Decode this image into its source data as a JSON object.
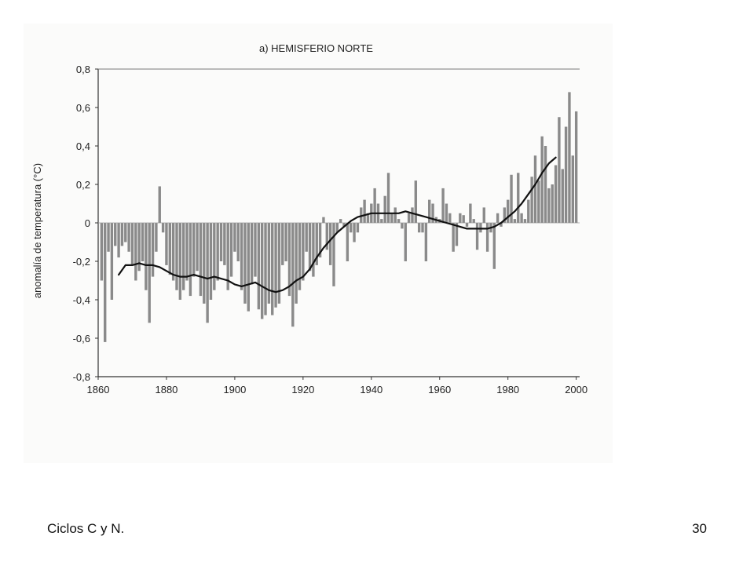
{
  "footer": {
    "left_text": "Ciclos C y N.",
    "page_number": "30"
  },
  "chart_data": {
    "type": "bar",
    "title": "a) HEMISFERIO NORTE",
    "xlabel": "",
    "ylabel": "anomalía de temperatura (°C)",
    "xlim": [
      1860,
      2001
    ],
    "ylim": [
      -0.8,
      0.8
    ],
    "xticks": [
      1860,
      1880,
      1900,
      1920,
      1940,
      1960,
      1980,
      2000
    ],
    "yticks": [
      0.8,
      0.6,
      0.4,
      0.2,
      0,
      -0.2,
      -0.4,
      -0.6,
      -0.8
    ],
    "ytick_labels": [
      "0,8",
      "0,6",
      "0,4",
      "0,2",
      "0",
      "-0,2",
      "-0,4",
      "-0,6",
      "-0,8"
    ],
    "grid": false,
    "colors": {
      "bars": "#8a8a8a",
      "smooth_line": "#111111",
      "axis": "#333333"
    },
    "series": [
      {
        "kind": "bars",
        "x": [
          1861,
          1862,
          1863,
          1864,
          1865,
          1866,
          1867,
          1868,
          1869,
          1870,
          1871,
          1872,
          1873,
          1874,
          1875,
          1876,
          1877,
          1878,
          1879,
          1880,
          1881,
          1882,
          1883,
          1884,
          1885,
          1886,
          1887,
          1888,
          1889,
          1890,
          1891,
          1892,
          1893,
          1894,
          1895,
          1896,
          1897,
          1898,
          1899,
          1900,
          1901,
          1902,
          1903,
          1904,
          1905,
          1906,
          1907,
          1908,
          1909,
          1910,
          1911,
          1912,
          1913,
          1914,
          1915,
          1916,
          1917,
          1918,
          1919,
          1920,
          1921,
          1922,
          1923,
          1924,
          1925,
          1926,
          1927,
          1928,
          1929,
          1930,
          1931,
          1932,
          1933,
          1934,
          1935,
          1936,
          1937,
          1938,
          1939,
          1940,
          1941,
          1942,
          1943,
          1944,
          1945,
          1946,
          1947,
          1948,
          1949,
          1950,
          1951,
          1952,
          1953,
          1954,
          1955,
          1956,
          1957,
          1958,
          1959,
          1960,
          1961,
          1962,
          1963,
          1964,
          1965,
          1966,
          1967,
          1968,
          1969,
          1970,
          1971,
          1972,
          1973,
          1974,
          1975,
          1976,
          1977,
          1978,
          1979,
          1980,
          1981,
          1982,
          1983,
          1984,
          1985,
          1986,
          1987,
          1988,
          1989,
          1990,
          1991,
          1992,
          1993,
          1994,
          1995,
          1996,
          1997,
          1998,
          1999,
          2000
        ],
        "values": [
          -0.3,
          -0.62,
          -0.15,
          -0.4,
          -0.12,
          -0.18,
          -0.12,
          -0.1,
          -0.15,
          -0.22,
          -0.3,
          -0.25,
          -0.2,
          -0.35,
          -0.52,
          -0.28,
          -0.15,
          0.19,
          -0.05,
          -0.22,
          -0.27,
          -0.3,
          -0.35,
          -0.4,
          -0.35,
          -0.3,
          -0.38,
          -0.28,
          -0.25,
          -0.38,
          -0.42,
          -0.52,
          -0.4,
          -0.35,
          -0.3,
          -0.2,
          -0.22,
          -0.35,
          -0.28,
          -0.15,
          -0.2,
          -0.35,
          -0.42,
          -0.46,
          -0.32,
          -0.28,
          -0.45,
          -0.5,
          -0.48,
          -0.42,
          -0.48,
          -0.44,
          -0.42,
          -0.22,
          -0.2,
          -0.38,
          -0.54,
          -0.42,
          -0.35,
          -0.3,
          -0.15,
          -0.25,
          -0.28,
          -0.22,
          -0.18,
          0.03,
          -0.14,
          -0.22,
          -0.33,
          -0.05,
          0.02,
          -0.02,
          -0.2,
          -0.05,
          -0.1,
          -0.05,
          0.08,
          0.12,
          0.05,
          0.1,
          0.18,
          0.1,
          0.02,
          0.14,
          0.26,
          0.05,
          0.08,
          0.02,
          -0.03,
          -0.2,
          0.05,
          0.08,
          0.22,
          -0.05,
          -0.05,
          -0.2,
          0.12,
          0.1,
          0.03,
          0.02,
          0.18,
          0.1,
          0.05,
          -0.15,
          -0.12,
          0.05,
          0.04,
          -0.02,
          0.1,
          0.02,
          -0.14,
          -0.05,
          0.08,
          -0.15,
          -0.05,
          -0.24,
          0.05,
          -0.02,
          0.08,
          0.12,
          0.25,
          0.02,
          0.26,
          0.05,
          0.02,
          0.12,
          0.24,
          0.35,
          0.22,
          0.45,
          0.4,
          0.18,
          0.2,
          0.3,
          0.55,
          0.28,
          0.5,
          0.68,
          0.35,
          0.58
        ]
      },
      {
        "kind": "line",
        "name": "",
        "x": [
          1866,
          1868,
          1870,
          1872,
          1874,
          1876,
          1878,
          1880,
          1882,
          1884,
          1886,
          1888,
          1890,
          1892,
          1894,
          1896,
          1898,
          1900,
          1902,
          1904,
          1906,
          1908,
          1910,
          1912,
          1914,
          1916,
          1918,
          1920,
          1922,
          1924,
          1926,
          1928,
          1930,
          1932,
          1934,
          1936,
          1938,
          1940,
          1942,
          1944,
          1946,
          1948,
          1950,
          1952,
          1954,
          1956,
          1958,
          1960,
          1962,
          1964,
          1966,
          1968,
          1970,
          1972,
          1974,
          1976,
          1978,
          1980,
          1982,
          1984,
          1986,
          1988,
          1990,
          1992,
          1994
        ],
        "values": [
          -0.27,
          -0.22,
          -0.22,
          -0.21,
          -0.22,
          -0.22,
          -0.23,
          -0.25,
          -0.27,
          -0.28,
          -0.28,
          -0.27,
          -0.28,
          -0.29,
          -0.28,
          -0.29,
          -0.3,
          -0.32,
          -0.33,
          -0.32,
          -0.31,
          -0.33,
          -0.35,
          -0.36,
          -0.35,
          -0.33,
          -0.3,
          -0.28,
          -0.24,
          -0.18,
          -0.13,
          -0.09,
          -0.05,
          -0.02,
          0.01,
          0.03,
          0.04,
          0.05,
          0.05,
          0.05,
          0.05,
          0.05,
          0.06,
          0.05,
          0.04,
          0.03,
          0.02,
          0.01,
          0.0,
          -0.01,
          -0.02,
          -0.03,
          -0.03,
          -0.03,
          -0.03,
          -0.02,
          0.0,
          0.03,
          0.06,
          0.1,
          0.15,
          0.2,
          0.26,
          0.31,
          0.34
        ]
      }
    ]
  }
}
